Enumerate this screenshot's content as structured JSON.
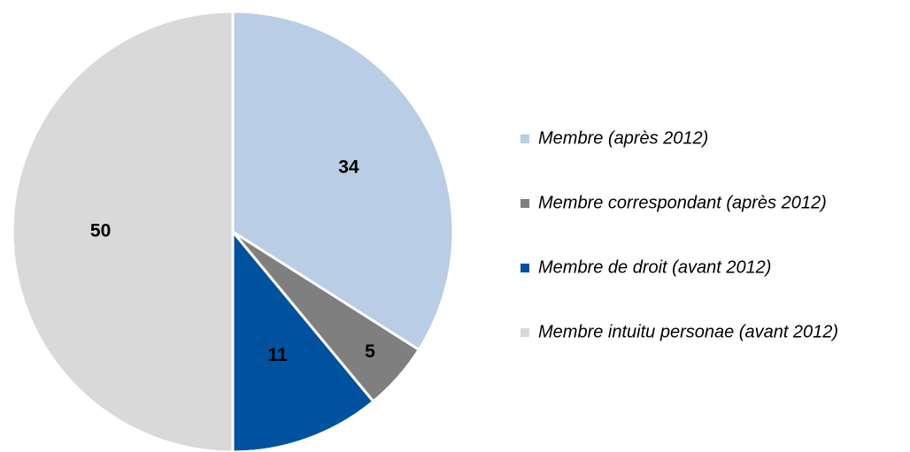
{
  "chart_data": {
    "type": "pie",
    "categories": [
      "Membre (après 2012)",
      "Membre correspondant (après 2012)",
      "Membre de droit (avant 2012)",
      "Membre intuitu personae (avant 2012)"
    ],
    "values": [
      34,
      5,
      11,
      50
    ],
    "colors": [
      "#b9cde5",
      "#7f7f7f",
      "#00519e",
      "#d9d9d9"
    ],
    "legend": "right"
  }
}
